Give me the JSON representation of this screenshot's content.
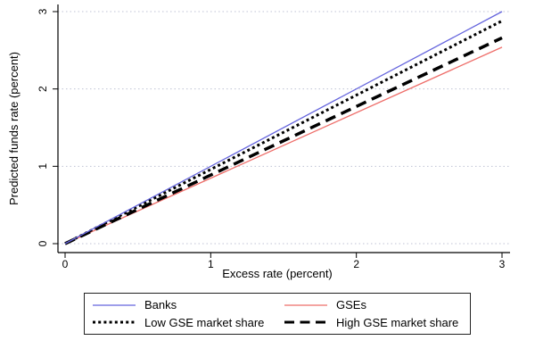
{
  "chart_data": {
    "type": "line",
    "title": "",
    "xlabel": "Excess rate (percent)",
    "ylabel": "Predicted funds rate (percent)",
    "xlim": [
      0,
      3
    ],
    "ylim": [
      0,
      3
    ],
    "xticks": [
      0,
      1,
      2,
      3
    ],
    "yticks": [
      0,
      1,
      2,
      3
    ],
    "grid": "horizontal dotted gridlines at each y tick",
    "legend_position": "boxed legend below x axis, 2 columns x 2 rows",
    "series": [
      {
        "name": "Banks",
        "color": "#6565dd",
        "dash": "solid",
        "stroke_width": 1.3,
        "x": [
          0,
          3
        ],
        "y": [
          0,
          3.0
        ]
      },
      {
        "name": "GSEs",
        "color": "#ee6d69",
        "dash": "solid",
        "stroke_width": 1.3,
        "x": [
          0,
          3
        ],
        "y": [
          0,
          2.54
        ]
      },
      {
        "name": "Low GSE market share",
        "color": "#000000",
        "dash": "dotted",
        "stroke_width": 3,
        "x": [
          0,
          3
        ],
        "y": [
          0,
          2.88
        ]
      },
      {
        "name": "High GSE market share",
        "color": "#000000",
        "dash": "dashed",
        "stroke_width": 3.5,
        "x": [
          0,
          3
        ],
        "y": [
          0,
          2.66
        ]
      }
    ]
  },
  "colors": {
    "grid": "#bfc2d4",
    "axis": "#000000",
    "background": "#ffffff"
  }
}
